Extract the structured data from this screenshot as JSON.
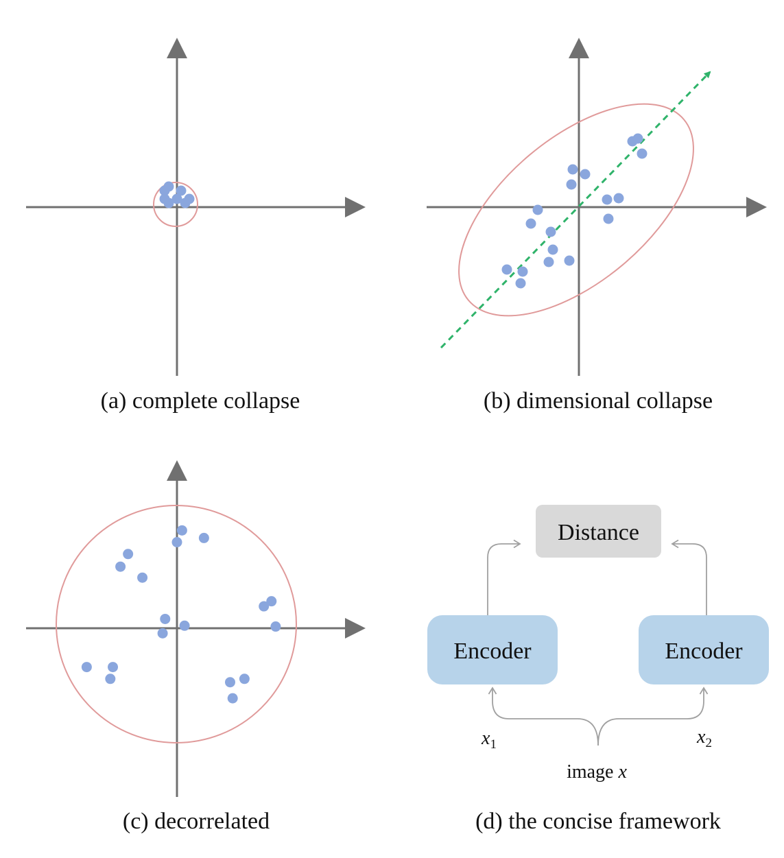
{
  "colors": {
    "axis": "#707070",
    "point": "#8aa6dd",
    "ellipse": "#e09a9a",
    "dashed_line": "#2fb36a",
    "encoder_box": "#b7d3ea",
    "distance_box": "#d9d9d9",
    "connector": "#a0a0a0"
  },
  "panels": {
    "a": {
      "caption": "(a) complete collapse",
      "points": [
        [
          -2,
          5
        ],
        [
          -3,
          4
        ],
        [
          1,
          4
        ],
        [
          -3,
          2
        ],
        [
          0,
          2
        ],
        [
          3,
          2
        ],
        [
          -2,
          1
        ],
        [
          2,
          1
        ]
      ]
    },
    "b": {
      "caption": "(b) dimensional collapse",
      "points": [
        [
          7.8,
          9.6
        ],
        [
          8.6,
          10
        ],
        [
          9.2,
          7.8
        ],
        [
          -0.9,
          5.5
        ],
        [
          0.9,
          4.8
        ],
        [
          -1.1,
          3.3
        ],
        [
          4.1,
          1.1
        ],
        [
          5.8,
          1.3
        ],
        [
          -6,
          -0.4
        ],
        [
          -7,
          -2.4
        ],
        [
          4.3,
          -1.7
        ],
        [
          -4.1,
          -3.6
        ],
        [
          -3.8,
          -6.2
        ],
        [
          -4.4,
          -8
        ],
        [
          -1.4,
          -7.8
        ],
        [
          -10.5,
          -9.1
        ],
        [
          -8.2,
          -9.4
        ],
        [
          -8.5,
          -11.1
        ]
      ]
    },
    "c": {
      "caption": "(c) decorrelated",
      "points": [
        [
          0.6,
          11.6
        ],
        [
          0,
          10.2
        ],
        [
          3.2,
          10.7
        ],
        [
          -5.8,
          8.8
        ],
        [
          -6.7,
          7.3
        ],
        [
          -4.1,
          6
        ],
        [
          11.2,
          3.2
        ],
        [
          10.3,
          2.6
        ],
        [
          -1.4,
          1.1
        ],
        [
          0.9,
          0.3
        ],
        [
          11.7,
          0.2
        ],
        [
          -1.7,
          -0.6
        ],
        [
          -10.7,
          -4.6
        ],
        [
          -7.6,
          -4.6
        ],
        [
          -7.9,
          -6
        ],
        [
          6.3,
          -6.4
        ],
        [
          8,
          -6
        ],
        [
          6.6,
          -8.3
        ]
      ]
    },
    "d": {
      "caption": "(d) the concise framework",
      "distance_label": "Distance",
      "encoder_left_label": "Encoder",
      "encoder_right_label": "Encoder",
      "x1_base": "x",
      "x1_sub": "1",
      "x2_base": "x",
      "x2_sub": "2",
      "image_label": "image ",
      "image_var": "x"
    }
  }
}
